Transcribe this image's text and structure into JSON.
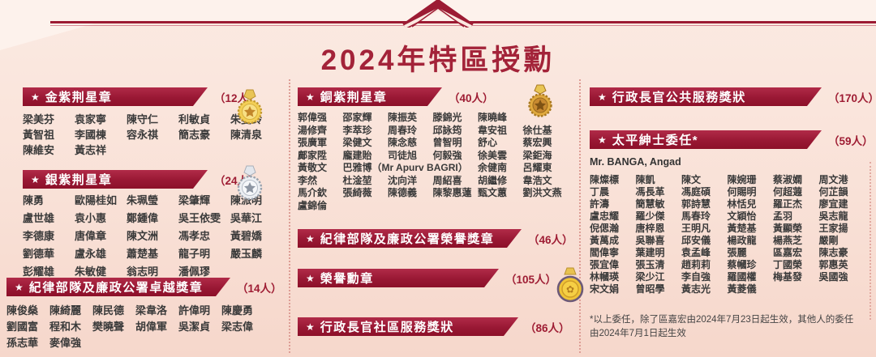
{
  "page": {
    "title": "2024年特區授勳"
  },
  "colors": {
    "accent": "#9e1c33",
    "ribbon": "#8c1029",
    "background": "#f9e1d7"
  },
  "icons": {
    "star": "★",
    "chevron": "up-chevron",
    "honour_flower": "✿"
  },
  "sections": {
    "gold": {
      "title": "金紫荆星章",
      "count": "（12人）",
      "medal": "gold-star-medal",
      "rows": [
        [
          "梁美芬",
          "袁家寧",
          "陳守仁",
          "利敏貞",
          "朱曼鈴"
        ],
        [
          "黃智祖",
          "李國棟",
          "容永祺",
          "簡志豪",
          "陳清泉"
        ],
        [
          "陳維安",
          "黃志祥"
        ]
      ]
    },
    "silver": {
      "title": "銀紫荆星章",
      "count": "（24人）",
      "medal": "silver-star-medal",
      "rows": [
        [
          "陳勇",
          "歐陽桂如",
          "朱珮瑩",
          "梁肇輝",
          "陳派明"
        ],
        [
          "盧世雄",
          "袁小惠",
          "鄭鍾偉",
          "吳王依雯",
          "吳華江"
        ],
        [
          "李德康",
          "唐偉章",
          "陳文洲",
          "馮孝忠",
          "黃碧嬌"
        ],
        [
          "劉德華",
          "盧永雄",
          "蕭楚基",
          "龍子明",
          "嚴玉麟"
        ],
        [
          "彭耀雄",
          "朱敏健",
          "翁志明",
          "潘佩璆"
        ]
      ]
    },
    "msm_distinguished": {
      "title": "紀律部隊及廉政公署卓越獎章",
      "count": "（14人）",
      "rows": [
        [
          "陳俊燊",
          "陳綺麗",
          "陳民德",
          "梁韋洛",
          "許偉明",
          "陳慶勇"
        ],
        [
          "劉國富",
          "程和木",
          "樊曉聲",
          "胡偉軍",
          "吳潔貞",
          "梁志偉"
        ],
        [
          "孫志華",
          "麥偉強"
        ]
      ]
    },
    "bronze": {
      "title": "銅紫荆星章",
      "count": "（40人）",
      "medal": "bronze-star-medal",
      "rows": [
        [
          "郭偉强",
          "邵家輝",
          "陳振英",
          "滕錦光",
          "陳曉峰"
        ],
        [
          "湯修齊",
          "李萃珍",
          "周春玲",
          "邱詠筠",
          "韋安祖",
          "徐仕基"
        ],
        [
          "張廣軍",
          "梁健文",
          "陳念慈",
          "曾智明",
          "舒心",
          "蔡宏興"
        ],
        [
          "鄺家陞",
          "龐建貽",
          "司徒旭",
          "何毅強",
          "徐美雲",
          "梁鉅海"
        ],
        [
          "黃敬文",
          "巴雅博（Mr Apurv BAGRI）",
          "余健南",
          "呂耀東"
        ],
        [
          "李然",
          "杜淦堃",
          "沈向洋",
          "周紹喜",
          "胡繼修",
          "韋浩文"
        ],
        [
          "馬介欽",
          "張綺薇",
          "陳德義",
          "陳黎惠蓮",
          "甄文蕙",
          "劉洪文燕"
        ],
        [
          "盧錦倫"
        ]
      ]
    },
    "msm_honour": {
      "title": "紀律部隊及廉政公署榮譽獎章",
      "count": "（46人）"
    },
    "moh": {
      "title": "榮譽勳章",
      "count": "（105人）",
      "medal": "medal-of-honour"
    },
    "cecs": {
      "title": "行政長官社區服務獎狀",
      "count": "（86人）"
    },
    "ceps": {
      "title": "行政長官公共服務獎狀",
      "count": "（170人）"
    },
    "jp": {
      "title": "太平紳士委任*",
      "count": "（59人）",
      "lead_name": "Mr. BANGA, Angad",
      "rows": [
        [
          "陳燦標",
          "陳凱",
          "陳文",
          "陳婉珊",
          "蔡淑嫻",
          "周文港"
        ],
        [
          "丁晨",
          "馮長革",
          "馮庭碩",
          "何賜明",
          "何超蕸",
          "何芷韻"
        ],
        [
          "許濤",
          "簡慧敏",
          "郭詩慧",
          "林恬兒",
          "羅正杰",
          "廖宜建"
        ],
        [
          "盧忠耀",
          "羅少傑",
          "馬春玲",
          "文穎怡",
          "孟羽",
          "吳志龍"
        ],
        [
          "倪偲瀚",
          "唐梓恩",
          "王明凡",
          "黃楚基",
          "黃顯榮",
          "王家揚"
        ],
        [
          "黃萬成",
          "吳聯喜",
          "邱安儀",
          "楊政龍",
          "楊燕芝",
          "嚴剛"
        ],
        [
          "閻偉寧",
          "葉建明",
          "袁孟峰",
          "張麗",
          "區嘉宏",
          "陳志豪"
        ],
        [
          "張宜偉",
          "張玉清",
          "趙莉莉",
          "蔡幗珍",
          "丁國榮",
          "郭惠英"
        ],
        [
          "林幗瑛",
          "梁少江",
          "李自強",
          "羅國權",
          "梅基發",
          "吳國強"
        ],
        [
          "宋文娟",
          "曾昭學",
          "黃志光",
          "黃菱儀"
        ]
      ]
    }
  },
  "footnote": "*以上委任，除了區嘉宏由2024年7月23日起生效，其他人的委任由2024年7月1日起生效"
}
